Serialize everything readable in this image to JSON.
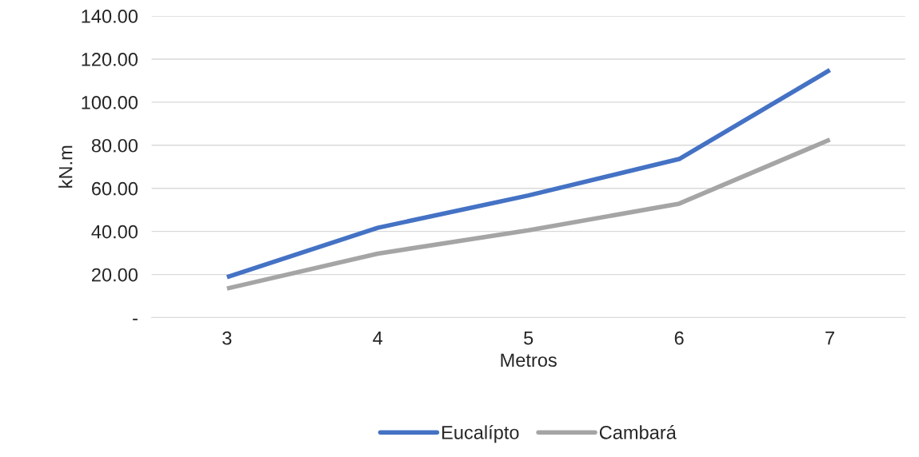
{
  "chart_data": {
    "type": "line",
    "xlabel": "Metros",
    "ylabel": "kN.m",
    "categories": [
      "3",
      "4",
      "5",
      "6",
      "7"
    ],
    "series": [
      {
        "name": "Eucalípto",
        "color": "#4472c4",
        "values": [
          18.8,
          41.7,
          56.7,
          73.6,
          114.9
        ]
      },
      {
        "name": "Cambará",
        "color": "#a5a5a5",
        "values": [
          13.5,
          29.7,
          40.5,
          52.9,
          82.6
        ]
      }
    ],
    "ylim": [
      0,
      140
    ],
    "yticks": [
      {
        "value": 0,
        "label": "-"
      },
      {
        "value": 20,
        "label": "20.00"
      },
      {
        "value": 40,
        "label": "40.00"
      },
      {
        "value": 60,
        "label": "60.00"
      },
      {
        "value": 80,
        "label": "80.00"
      },
      {
        "value": 100,
        "label": "100.00"
      },
      {
        "value": 120,
        "label": "120.00"
      },
      {
        "value": 140,
        "label": "140.00"
      }
    ],
    "grid": "y",
    "legend": "bottom",
    "marker": "none",
    "line_style": "solid"
  }
}
